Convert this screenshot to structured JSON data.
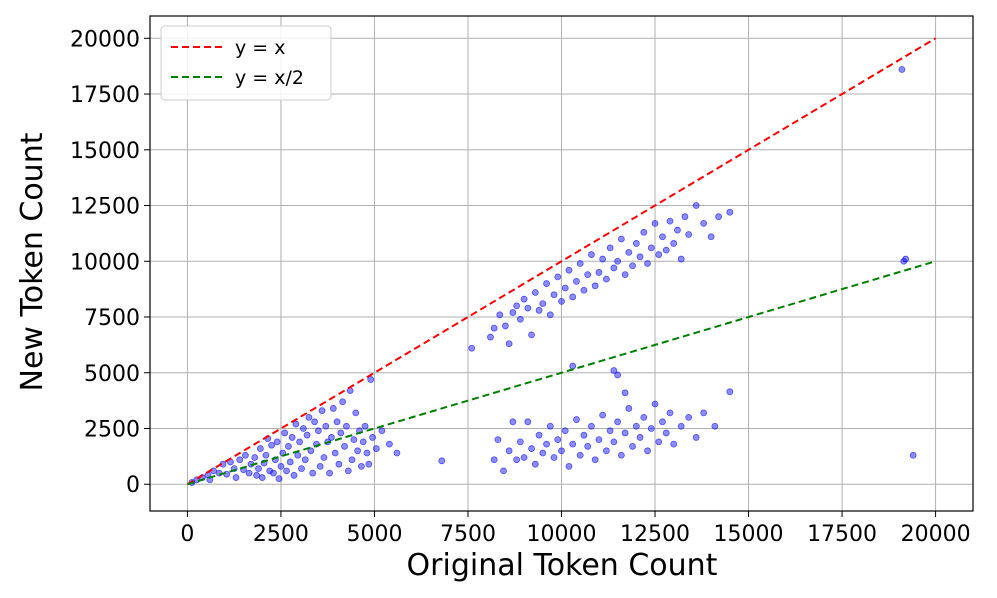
{
  "chart_data": {
    "type": "scatter",
    "title": "",
    "xlabel": "Original Token Count",
    "ylabel": "New Token Count",
    "xlim": [
      -1000,
      21000
    ],
    "ylim": [
      -1200,
      21000
    ],
    "xticks": [
      0,
      2500,
      5000,
      7500,
      10000,
      12500,
      15000,
      17500,
      20000
    ],
    "yticks": [
      0,
      2500,
      5000,
      7500,
      10000,
      12500,
      15000,
      17500,
      20000
    ],
    "grid": true,
    "legend_position": "top-left",
    "point_color": "#0000ff",
    "series": [
      {
        "name": "",
        "kind": "points",
        "points": [
          [
            120,
            80
          ],
          [
            250,
            200
          ],
          [
            400,
            300
          ],
          [
            550,
            420
          ],
          [
            600,
            200
          ],
          [
            700,
            600
          ],
          [
            850,
            500
          ],
          [
            950,
            900
          ],
          [
            1050,
            450
          ],
          [
            1150,
            1000
          ],
          [
            1250,
            700
          ],
          [
            1300,
            300
          ],
          [
            1400,
            1100
          ],
          [
            1500,
            650
          ],
          [
            1550,
            1300
          ],
          [
            1650,
            500
          ],
          [
            1700,
            900
          ],
          [
            1800,
            1200
          ],
          [
            1850,
            400
          ],
          [
            1900,
            700
          ],
          [
            1950,
            1600
          ],
          [
            2000,
            300
          ],
          [
            2050,
            950
          ],
          [
            2100,
            1300
          ],
          [
            2150,
            2050
          ],
          [
            2200,
            600
          ],
          [
            2250,
            1750
          ],
          [
            2300,
            500
          ],
          [
            2350,
            1100
          ],
          [
            2400,
            1900
          ],
          [
            2450,
            250
          ],
          [
            2500,
            800
          ],
          [
            2550,
            1400
          ],
          [
            2600,
            2300
          ],
          [
            2650,
            600
          ],
          [
            2700,
            1700
          ],
          [
            2750,
            1000
          ],
          [
            2800,
            2100
          ],
          [
            2850,
            400
          ],
          [
            2900,
            2700
          ],
          [
            2950,
            1300
          ],
          [
            3000,
            1900
          ],
          [
            3050,
            700
          ],
          [
            3100,
            2500
          ],
          [
            3150,
            1100
          ],
          [
            3200,
            2200
          ],
          [
            3250,
            3000
          ],
          [
            3300,
            1500
          ],
          [
            3350,
            500
          ],
          [
            3400,
            2800
          ],
          [
            3450,
            1800
          ],
          [
            3500,
            2400
          ],
          [
            3550,
            800
          ],
          [
            3600,
            3300
          ],
          [
            3650,
            1200
          ],
          [
            3700,
            2600
          ],
          [
            3750,
            1900
          ],
          [
            3800,
            500
          ],
          [
            3850,
            2100
          ],
          [
            3900,
            3400
          ],
          [
            3950,
            1400
          ],
          [
            4000,
            2800
          ],
          [
            4050,
            900
          ],
          [
            4100,
            2300
          ],
          [
            4150,
            3700
          ],
          [
            4200,
            1700
          ],
          [
            4250,
            2600
          ],
          [
            4300,
            600
          ],
          [
            4350,
            4200
          ],
          [
            4400,
            1100
          ],
          [
            4450,
            2000
          ],
          [
            4500,
            3200
          ],
          [
            4550,
            1500
          ],
          [
            4600,
            2400
          ],
          [
            4650,
            800
          ],
          [
            4700,
            1900
          ],
          [
            4750,
            2600
          ],
          [
            4800,
            1400
          ],
          [
            4850,
            900
          ],
          [
            4900,
            4700
          ],
          [
            4950,
            2100
          ],
          [
            5050,
            1600
          ],
          [
            5200,
            2400
          ],
          [
            5400,
            1800
          ],
          [
            5600,
            1400
          ],
          [
            6800,
            1050
          ],
          [
            7600,
            6100
          ],
          [
            8100,
            6600
          ],
          [
            8200,
            7000
          ],
          [
            8350,
            7600
          ],
          [
            8500,
            7100
          ],
          [
            8600,
            6300
          ],
          [
            8700,
            7700
          ],
          [
            8800,
            8000
          ],
          [
            8900,
            7400
          ],
          [
            9000,
            8300
          ],
          [
            9100,
            7900
          ],
          [
            9200,
            6700
          ],
          [
            9300,
            8600
          ],
          [
            9400,
            7800
          ],
          [
            9500,
            8100
          ],
          [
            9600,
            9000
          ],
          [
            9700,
            7600
          ],
          [
            9800,
            8500
          ],
          [
            9900,
            9300
          ],
          [
            10000,
            8200
          ],
          [
            10100,
            8800
          ],
          [
            10200,
            9600
          ],
          [
            10300,
            8400
          ],
          [
            10400,
            9100
          ],
          [
            10500,
            9900
          ],
          [
            10600,
            8700
          ],
          [
            10700,
            9400
          ],
          [
            10800,
            10300
          ],
          [
            10900,
            8900
          ],
          [
            11000,
            9500
          ],
          [
            11100,
            10100
          ],
          [
            11200,
            9200
          ],
          [
            11300,
            10600
          ],
          [
            11400,
            9700
          ],
          [
            11500,
            10000
          ],
          [
            11600,
            11000
          ],
          [
            11700,
            9400
          ],
          [
            11800,
            10400
          ],
          [
            11900,
            9800
          ],
          [
            12000,
            10800
          ],
          [
            12100,
            10200
          ],
          [
            12200,
            11300
          ],
          [
            12300,
            9900
          ],
          [
            12400,
            10600
          ],
          [
            12500,
            11700
          ],
          [
            12600,
            10300
          ],
          [
            12700,
            11100
          ],
          [
            12800,
            10500
          ],
          [
            12900,
            11800
          ],
          [
            13000,
            10800
          ],
          [
            13100,
            11400
          ],
          [
            13200,
            10100
          ],
          [
            13300,
            12000
          ],
          [
            13400,
            11200
          ],
          [
            13600,
            12500
          ],
          [
            13800,
            11700
          ],
          [
            14000,
            11100
          ],
          [
            14200,
            12000
          ],
          [
            14500,
            12200
          ],
          [
            8200,
            1100
          ],
          [
            8300,
            2000
          ],
          [
            8450,
            600
          ],
          [
            8600,
            1500
          ],
          [
            8700,
            2800
          ],
          [
            8800,
            1100
          ],
          [
            8900,
            1900
          ],
          [
            9000,
            1200
          ],
          [
            9100,
            2800
          ],
          [
            9200,
            1600
          ],
          [
            9300,
            900
          ],
          [
            9400,
            2200
          ],
          [
            9500,
            1400
          ],
          [
            9600,
            1800
          ],
          [
            9700,
            2600
          ],
          [
            9800,
            1200
          ],
          [
            9900,
            2000
          ],
          [
            10000,
            1500
          ],
          [
            10100,
            2400
          ],
          [
            10200,
            800
          ],
          [
            10300,
            1800
          ],
          [
            10400,
            2900
          ],
          [
            10500,
            1300
          ],
          [
            10600,
            2200
          ],
          [
            10700,
            1700
          ],
          [
            10800,
            2600
          ],
          [
            10900,
            1100
          ],
          [
            11000,
            2000
          ],
          [
            11100,
            3100
          ],
          [
            11200,
            1500
          ],
          [
            11300,
            2400
          ],
          [
            11400,
            1900
          ],
          [
            11500,
            2800
          ],
          [
            11600,
            1300
          ],
          [
            11700,
            2300
          ],
          [
            11800,
            3400
          ],
          [
            11900,
            1700
          ],
          [
            12000,
            2600
          ],
          [
            12100,
            2100
          ],
          [
            12200,
            3000
          ],
          [
            12300,
            1500
          ],
          [
            12400,
            2500
          ],
          [
            12500,
            3600
          ],
          [
            12600,
            1900
          ],
          [
            12700,
            2800
          ],
          [
            12800,
            2300
          ],
          [
            12900,
            3200
          ],
          [
            13000,
            1800
          ],
          [
            13200,
            2600
          ],
          [
            13400,
            3000
          ],
          [
            13600,
            2100
          ],
          [
            13800,
            3200
          ],
          [
            14100,
            2600
          ],
          [
            14500,
            4150
          ],
          [
            10300,
            5300
          ],
          [
            11400,
            5100
          ],
          [
            11500,
            4900
          ],
          [
            11700,
            4100
          ],
          [
            19100,
            18600
          ],
          [
            19150,
            10000
          ],
          [
            19200,
            10100
          ],
          [
            19400,
            1300
          ]
        ]
      },
      {
        "name": "y = x",
        "kind": "line",
        "color": "#ff0000",
        "points": [
          [
            0,
            0
          ],
          [
            20000,
            20000
          ]
        ]
      },
      {
        "name": "y = x/2",
        "kind": "line",
        "color": "#008000",
        "points": [
          [
            0,
            0
          ],
          [
            20000,
            10000
          ]
        ]
      }
    ]
  }
}
